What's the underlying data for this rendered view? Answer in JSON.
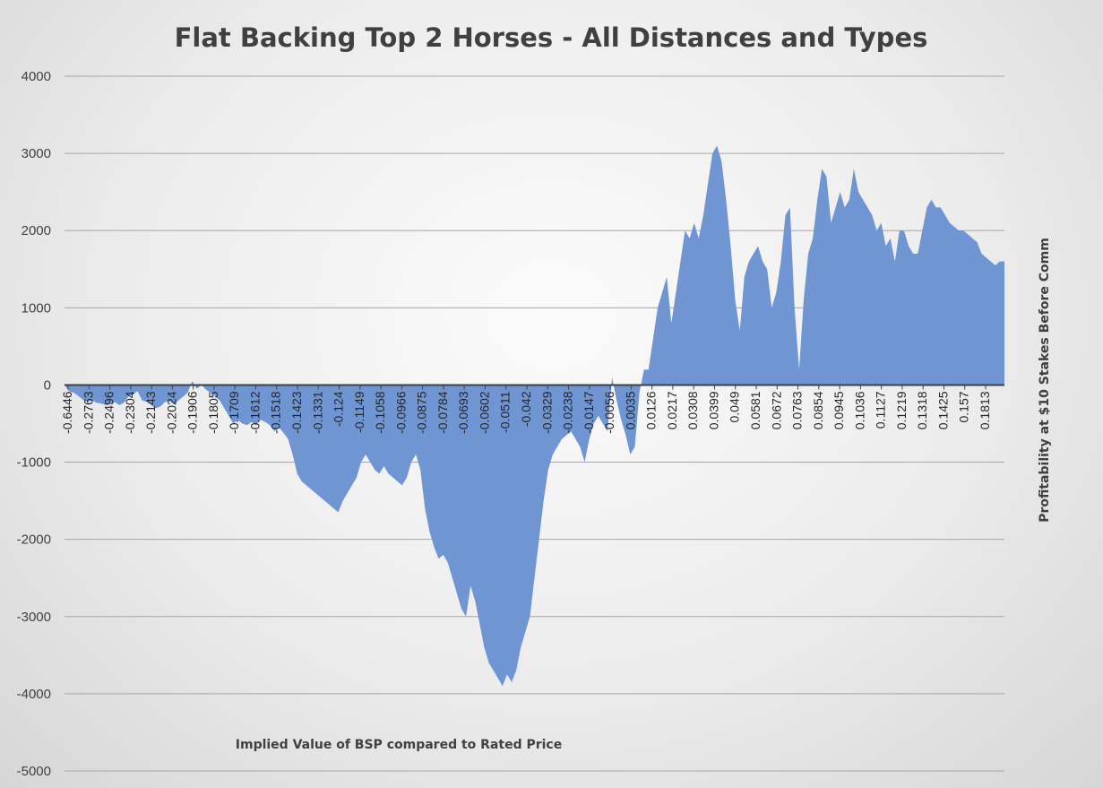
{
  "chart_data": {
    "type": "area",
    "title": "Flat Backing Top 2 Horses - All Distances and Types",
    "xlabel": "Implied Value of BSP compared to Rated Price",
    "ylabel": "Profitability at $10 Stakes Before Comm",
    "ylim": [
      -5000,
      4000
    ],
    "yticks": [
      4000,
      3000,
      2000,
      1000,
      0,
      -1000,
      -2000,
      -3000,
      -4000,
      -5000
    ],
    "x_tick_labels": [
      "-0.6446",
      "-0.2763",
      "-0.2496",
      "-0.2304",
      "-0.2143",
      "-0.2024",
      "-0.1906",
      "-0.1805",
      "-0.1709",
      "-0.1612",
      "-0.1518",
      "-0.1423",
      "-0.1331",
      "-0.124",
      "-0.1149",
      "-0.1058",
      "-0.0966",
      "-0.0875",
      "-0.0784",
      "-0.0693",
      "-0.0602",
      "-0.0511",
      "-0.042",
      "-0.0329",
      "-0.0238",
      "-0.0147",
      "-0.0056",
      "0.0035",
      "0.0126",
      "0.0217",
      "0.0308",
      "0.0399",
      "0.049",
      "0.0581",
      "0.0672",
      "0.0763",
      "0.0854",
      "0.0945",
      "0.1036",
      "0.1127",
      "0.1219",
      "0.1318",
      "0.1425",
      "0.157",
      "0.1813"
    ],
    "grid": true,
    "legend": "none",
    "color": "#6f95d3",
    "series": [
      {
        "values": [
          0,
          -80,
          -100,
          -140,
          -190,
          -220,
          -200,
          -230,
          -240,
          -260,
          -250,
          -220,
          -260,
          -230,
          -150,
          -120,
          -80,
          -200,
          -220,
          -260,
          -300,
          -280,
          -220,
          -210,
          -250,
          -200,
          -150,
          -100,
          50,
          -50,
          0,
          -60,
          -100,
          -150,
          -200,
          -300,
          -400,
          -500,
          -450,
          -500,
          -520,
          -480,
          -520,
          -450,
          -480,
          -520,
          -600,
          -550,
          -620,
          -700,
          -900,
          -1150,
          -1250,
          -1300,
          -1350,
          -1400,
          -1450,
          -1500,
          -1550,
          -1600,
          -1650,
          -1500,
          -1400,
          -1300,
          -1200,
          -1000,
          -900,
          -1000,
          -1100,
          -1150,
          -1050,
          -1150,
          -1200,
          -1250,
          -1300,
          -1200,
          -1000,
          -900,
          -1100,
          -1600,
          -1900,
          -2100,
          -2250,
          -2200,
          -2300,
          -2500,
          -2700,
          -2900,
          -3000,
          -2600,
          -2800,
          -3100,
          -3400,
          -3600,
          -3700,
          -3800,
          -3900,
          -3750,
          -3850,
          -3700,
          -3400,
          -3200,
          -3000,
          -2500,
          -2000,
          -1500,
          -1100,
          -900,
          -800,
          -700,
          -650,
          -600,
          -700,
          -800,
          -1000,
          -700,
          -500,
          -400,
          -500,
          -600,
          100,
          -200,
          -450,
          -650,
          -900,
          -800,
          -100,
          200,
          200,
          600,
          1000,
          1200,
          1400,
          800,
          1200,
          1600,
          2000,
          1900,
          2100,
          1900,
          2200,
          2600,
          3000,
          3100,
          2900,
          2400,
          1800,
          1100,
          700,
          1400,
          1600,
          1700,
          1800,
          1600,
          1500,
          1000,
          1200,
          1600,
          2200,
          2300,
          1000,
          200,
          1100,
          1700,
          1900,
          2400,
          2800,
          2700,
          2100,
          2300,
          2500,
          2300,
          2400,
          2800,
          2500,
          2400,
          2300,
          2200,
          2000,
          2100,
          1800,
          1900,
          1600,
          2000,
          2000,
          1800,
          1700,
          1700,
          2000,
          2300,
          2400,
          2300,
          2300,
          2200,
          2100,
          2050,
          2000,
          2000,
          1950,
          1900,
          1850,
          1700,
          1650,
          1600,
          1550,
          1600,
          1600
        ]
      }
    ]
  }
}
